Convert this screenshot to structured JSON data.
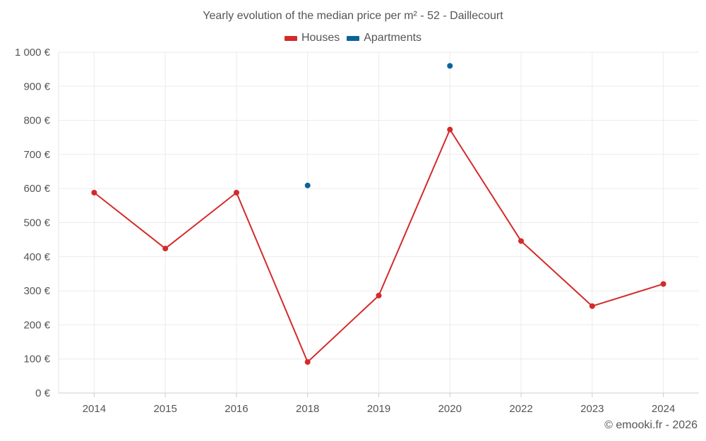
{
  "chart_data": {
    "type": "line",
    "title": "Yearly evolution of the median price per m² - 52 - Daillecourt",
    "categories": [
      "2014",
      "2015",
      "2016",
      "2018",
      "2019",
      "2020",
      "2022",
      "2023",
      "2024"
    ],
    "series": [
      {
        "name": "Houses",
        "color": "#d42a2a",
        "values": [
          588,
          424,
          588,
          91,
          286,
          773,
          446,
          255,
          320
        ],
        "line": true
      },
      {
        "name": "Apartments",
        "color": "#0b6499",
        "values": [
          null,
          null,
          null,
          609,
          null,
          960,
          null,
          null,
          null
        ],
        "line": false
      }
    ],
    "y_ticks": [
      "0 €",
      "100 €",
      "200 €",
      "300 €",
      "400 €",
      "500 €",
      "600 €",
      "700 €",
      "800 €",
      "900 €",
      "1 000 €"
    ],
    "ylim": [
      0,
      1000
    ],
    "grid": true,
    "legend_position": "top-center",
    "xlabel": "",
    "ylabel": ""
  },
  "credit": "© emooki.fr - 2026"
}
